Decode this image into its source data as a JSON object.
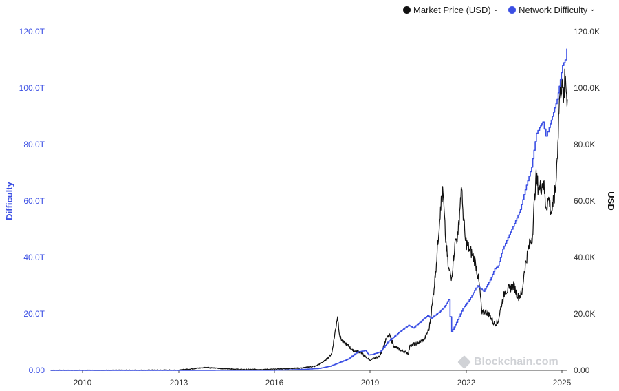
{
  "legend": {
    "price_label": "Market Price (USD)",
    "difficulty_label": "Network Difficulty"
  },
  "watermark": "Blockchain.com",
  "colors": {
    "price": "#111111",
    "difficulty": "#3b4fe4",
    "axis_text": "#333333",
    "left_axis_text": "#3b4fe4"
  },
  "chart_data": {
    "type": "line",
    "x_ticks": [
      "2010",
      "2013",
      "2016",
      "2019",
      "2022",
      "2025"
    ],
    "left_axis": {
      "label": "Difficulty",
      "ticks": [
        "0.00",
        "20.0T",
        "40.0T",
        "60.0T",
        "80.0T",
        "100.0T",
        "120.0T"
      ],
      "range": [
        0,
        120
      ],
      "unit": "T"
    },
    "right_axis": {
      "label": "USD",
      "ticks": [
        "0.00",
        "20.0K",
        "40.0K",
        "60.0K",
        "80.0K",
        "100.0K",
        "120.0K"
      ],
      "range": [
        0,
        120
      ],
      "unit": "K"
    },
    "x_range": [
      2009.0,
      2025.25
    ],
    "grid": false,
    "legend_position": "top-right",
    "series": [
      {
        "name": "Market Price (USD)",
        "axis": "right",
        "points": [
          [
            2009.0,
            0
          ],
          [
            2010.5,
            0
          ],
          [
            2013.0,
            0.1
          ],
          [
            2013.9,
            1.1
          ],
          [
            2014.1,
            0.8
          ],
          [
            2014.5,
            0.6
          ],
          [
            2015.0,
            0.3
          ],
          [
            2016.0,
            0.4
          ],
          [
            2016.9,
            0.9
          ],
          [
            2017.3,
            1.5
          ],
          [
            2017.6,
            3.5
          ],
          [
            2017.8,
            6
          ],
          [
            2017.95,
            17
          ],
          [
            2017.98,
            19
          ],
          [
            2018.05,
            12
          ],
          [
            2018.15,
            10
          ],
          [
            2018.3,
            9
          ],
          [
            2018.45,
            7
          ],
          [
            2018.7,
            6.5
          ],
          [
            2018.88,
            4.5
          ],
          [
            2019.0,
            3.6
          ],
          [
            2019.3,
            5
          ],
          [
            2019.5,
            11
          ],
          [
            2019.6,
            12.5
          ],
          [
            2019.75,
            8.5
          ],
          [
            2019.95,
            7.2
          ],
          [
            2020.2,
            6
          ],
          [
            2020.25,
            9
          ],
          [
            2020.45,
            9.5
          ],
          [
            2020.7,
            11
          ],
          [
            2020.85,
            15
          ],
          [
            2020.95,
            24
          ],
          [
            2021.05,
            35
          ],
          [
            2021.2,
            58
          ],
          [
            2021.28,
            63
          ],
          [
            2021.35,
            48
          ],
          [
            2021.45,
            36
          ],
          [
            2021.55,
            33
          ],
          [
            2021.65,
            45
          ],
          [
            2021.75,
            48
          ],
          [
            2021.85,
            65
          ],
          [
            2021.9,
            57
          ],
          [
            2021.98,
            46
          ],
          [
            2022.1,
            43
          ],
          [
            2022.2,
            41
          ],
          [
            2022.3,
            38
          ],
          [
            2022.42,
            30
          ],
          [
            2022.5,
            20
          ],
          [
            2022.6,
            21
          ],
          [
            2022.75,
            19.5
          ],
          [
            2022.87,
            16.5
          ],
          [
            2023.0,
            17
          ],
          [
            2023.1,
            23
          ],
          [
            2023.22,
            28
          ],
          [
            2023.35,
            29
          ],
          [
            2023.5,
            30
          ],
          [
            2023.62,
            26
          ],
          [
            2023.75,
            27
          ],
          [
            2023.82,
            35
          ],
          [
            2023.95,
            43
          ],
          [
            2024.08,
            48
          ],
          [
            2024.18,
            68
          ],
          [
            2024.3,
            64
          ],
          [
            2024.42,
            67
          ],
          [
            2024.5,
            58
          ],
          [
            2024.6,
            61
          ],
          [
            2024.65,
            56
          ],
          [
            2024.72,
            58
          ],
          [
            2024.8,
            64
          ],
          [
            2024.85,
            75
          ],
          [
            2024.92,
            96
          ],
          [
            2025.0,
            103
          ],
          [
            2025.05,
            95
          ],
          [
            2025.1,
            104
          ],
          [
            2025.17,
            96
          ]
        ]
      },
      {
        "name": "Network Difficulty",
        "axis": "left",
        "points": [
          [
            2009.0,
            0
          ],
          [
            2016.0,
            0.05
          ],
          [
            2016.5,
            0.2
          ],
          [
            2017.0,
            0.4
          ],
          [
            2017.4,
            0.7
          ],
          [
            2017.75,
            1.5
          ],
          [
            2018.0,
            2.6
          ],
          [
            2018.3,
            4
          ],
          [
            2018.6,
            6.5
          ],
          [
            2018.85,
            7
          ],
          [
            2018.95,
            5.5
          ],
          [
            2019.05,
            5.6
          ],
          [
            2019.3,
            6.5
          ],
          [
            2019.55,
            10
          ],
          [
            2019.85,
            13
          ],
          [
            2020.2,
            16
          ],
          [
            2020.35,
            15
          ],
          [
            2020.55,
            17
          ],
          [
            2020.8,
            19.5
          ],
          [
            2020.9,
            18.5
          ],
          [
            2021.2,
            21
          ],
          [
            2021.35,
            23
          ],
          [
            2021.45,
            25
          ],
          [
            2021.5,
            19
          ],
          [
            2021.55,
            13.7
          ],
          [
            2021.7,
            17
          ],
          [
            2021.9,
            22
          ],
          [
            2022.1,
            25
          ],
          [
            2022.35,
            30
          ],
          [
            2022.55,
            28
          ],
          [
            2022.75,
            32
          ],
          [
            2022.9,
            36
          ],
          [
            2023.0,
            37
          ],
          [
            2023.15,
            43
          ],
          [
            2023.35,
            48
          ],
          [
            2023.55,
            53
          ],
          [
            2023.7,
            57
          ],
          [
            2023.85,
            64
          ],
          [
            2024.05,
            72
          ],
          [
            2024.2,
            84
          ],
          [
            2024.3,
            86
          ],
          [
            2024.4,
            88
          ],
          [
            2024.5,
            83
          ],
          [
            2024.6,
            86
          ],
          [
            2024.7,
            90
          ],
          [
            2024.85,
            96
          ],
          [
            2024.95,
            103
          ],
          [
            2025.02,
            108
          ],
          [
            2025.1,
            110
          ],
          [
            2025.15,
            114
          ]
        ]
      }
    ]
  }
}
